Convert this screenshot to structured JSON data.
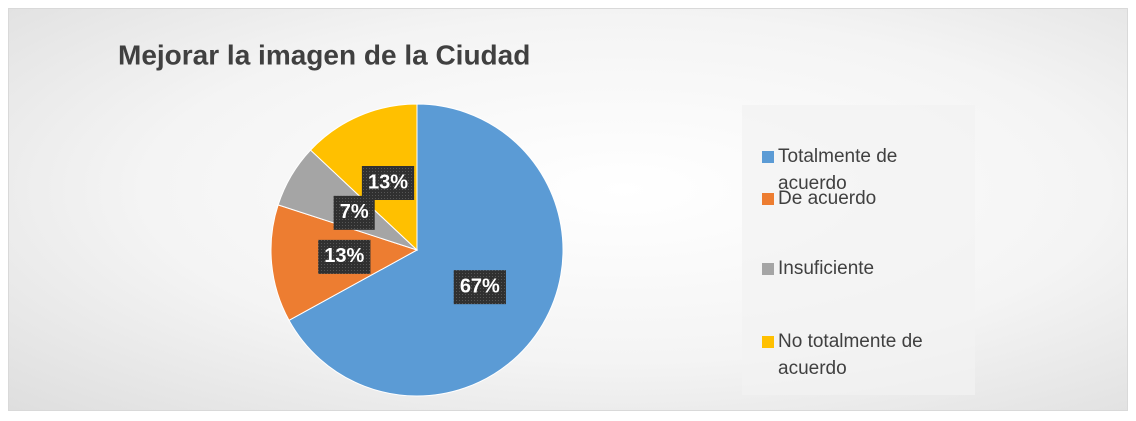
{
  "chart_data": {
    "type": "pie",
    "title": "Mejorar la imagen de la Ciudad",
    "categories": [
      "Totalmente de acuerdo",
      "De acuerdo",
      "Insuficiente",
      "No totalmente de acuerdo"
    ],
    "values": [
      67,
      13,
      7,
      13
    ],
    "value_labels": [
      "67%",
      "13%",
      "7%",
      "13%"
    ],
    "colors": [
      "#5b9bd5",
      "#ed7d31",
      "#a5a5a5",
      "#ffc000"
    ],
    "legend": "right"
  }
}
